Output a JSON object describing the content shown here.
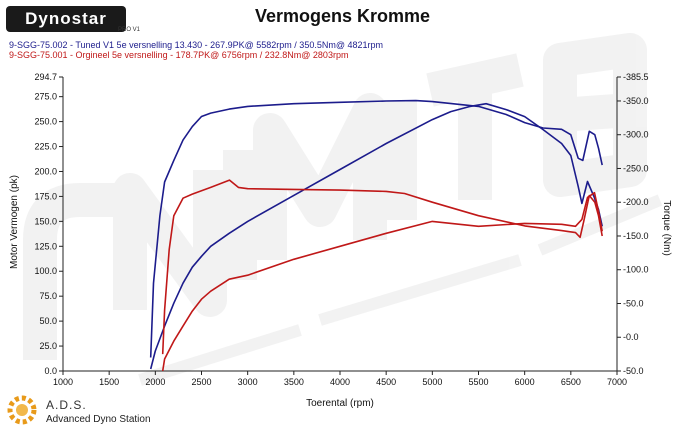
{
  "header": {
    "logo_text": "Dynostar",
    "logo_sub": "PRO V1",
    "title": "Vermogens Kromme"
  },
  "legend": [
    {
      "text": "9-SGG-75.002 - Tuned V1 5e versnelling 13.430 - 267.9PK@ 5582rpm / 350.5Nm@ 4821rpm",
      "color": "#1c1c8c"
    },
    {
      "text": "9-SGG-75.001 - Orgineel 5e versnelling - 178.7PK@ 6756rpm / 232.8Nm@ 2803rpm",
      "color": "#c01818"
    }
  ],
  "footer": {
    "brand": "A.D.S.",
    "subtitle": "Advanced Dyno Station"
  },
  "chart_data": {
    "type": "line",
    "title": "Vermogens Kromme",
    "xlabel": "Toerental (rpm)",
    "ylabel": "Motor Vermogen (pk)",
    "y2label": "Torque (Nm)",
    "xlim": [
      1000,
      7000
    ],
    "ylim": [
      0,
      294.7
    ],
    "y2lim": [
      -50,
      385.5
    ],
    "x_ticks": [
      "1000",
      "1500",
      "2000",
      "2500",
      "3000",
      "3500",
      "4000",
      "4500",
      "5000",
      "5500",
      "6000",
      "6500",
      "7000"
    ],
    "y_ticks": [
      0,
      25,
      50,
      75,
      100,
      125,
      150,
      175,
      200,
      225,
      250,
      275,
      294.7
    ],
    "y_tick_labels": [
      "0.0",
      "25.0",
      "50.0",
      "75.0",
      "100.0",
      "125.0",
      "150.0",
      "175.0",
      "200.0",
      "225.0",
      "250.0",
      "275.0",
      "294.7"
    ],
    "y2_ticks": [
      -50,
      0,
      50,
      100,
      150,
      200,
      250,
      300,
      350,
      385.5
    ],
    "y2_tick_labels": [
      "-50.0",
      "-0.0",
      "-50.0",
      "-100.0",
      "-150.0",
      "-200.0",
      "-250.0",
      "-300.0",
      "-350.0",
      "-385.5"
    ],
    "grid": false,
    "series": [
      {
        "axis": "power",
        "color": "#1c1c8c",
        "x": [
          1950,
          2000,
          2100,
          2200,
          2300,
          2400,
          2500,
          2600,
          2800,
          3000,
          3500,
          4000,
          4500,
          5000,
          5200,
          5400,
          5582,
          5800,
          6000,
          6200,
          6400,
          6500,
          6580,
          6620,
          6680,
          6750,
          6800,
          6840
        ],
        "values": [
          2,
          20,
          45,
          68,
          88,
          104,
          115,
          125,
          138,
          150,
          176,
          202,
          228,
          252,
          260,
          265,
          267.9,
          262,
          255,
          242,
          228,
          216,
          185,
          168,
          190,
          175,
          162,
          145
        ]
      },
      {
        "axis": "torque",
        "color": "#1c1c8c",
        "x": [
          1950,
          1980,
          2050,
          2100,
          2200,
          2300,
          2400,
          2500,
          2600,
          2800,
          3000,
          3500,
          4000,
          4500,
          4821,
          5000,
          5500,
          5800,
          6000,
          6200,
          6400,
          6500,
          6580,
          6630,
          6700,
          6760,
          6800,
          6840
        ],
        "values": [
          -30,
          80,
          180,
          230,
          262,
          292,
          312,
          327,
          332,
          338,
          342,
          346,
          348,
          350,
          350.5,
          349,
          342,
          330,
          318,
          310,
          308,
          300,
          265,
          262,
          305,
          300,
          280,
          255
        ]
      },
      {
        "axis": "power",
        "color": "#c01818",
        "x": [
          2080,
          2100,
          2200,
          2300,
          2400,
          2500,
          2600,
          2800,
          3000,
          3500,
          4000,
          4500,
          5000,
          5500,
          6000,
          6400,
          6550,
          6620,
          6680,
          6756,
          6800,
          6840
        ],
        "values": [
          0,
          12,
          30,
          45,
          60,
          72,
          80,
          92,
          96,
          112,
          125,
          138,
          150,
          145,
          148,
          147,
          145,
          152,
          174,
          178.7,
          160,
          140
        ]
      },
      {
        "axis": "torque",
        "color": "#c01818",
        "x": [
          2080,
          2100,
          2150,
          2200,
          2300,
          2400,
          2600,
          2803,
          2900,
          3000,
          3500,
          4000,
          4500,
          4700,
          5000,
          5500,
          6000,
          6400,
          6550,
          6600,
          6640,
          6700,
          6760,
          6800,
          6840
        ],
        "values": [
          -25,
          40,
          130,
          180,
          206,
          212,
          222,
          232.8,
          222,
          220,
          219,
          218,
          216,
          213,
          200,
          180,
          165,
          158,
          155,
          148,
          172,
          210,
          200,
          180,
          150
        ]
      }
    ]
  }
}
